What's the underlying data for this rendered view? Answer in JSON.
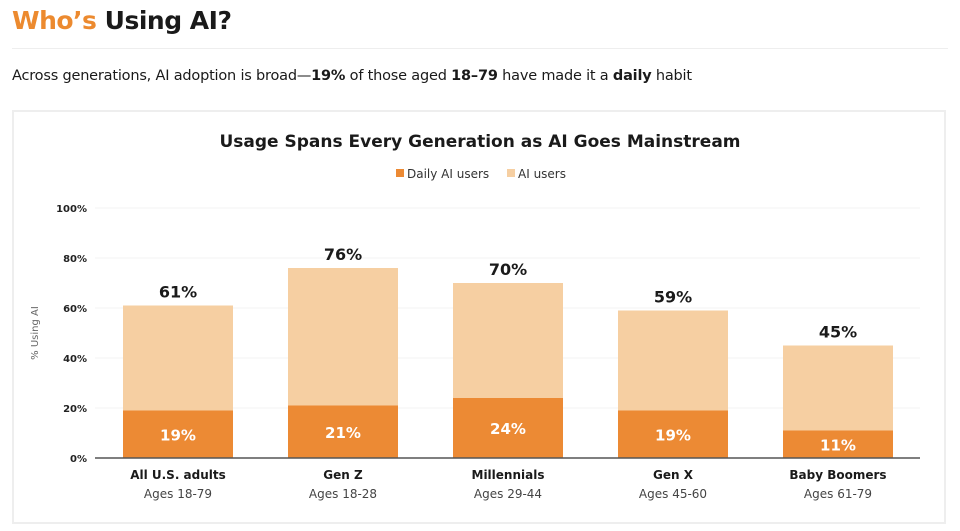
{
  "header": {
    "title_accent": "Who’s",
    "title_rest": " Using AI?"
  },
  "subtitle": {
    "pre": "Across generations, AI adoption is broad—",
    "b1": "19%",
    "mid": " of those aged ",
    "b2": "18–79",
    "mid2": " have made it a ",
    "b3": "daily",
    "post": " habit"
  },
  "chart_data": {
    "type": "bar",
    "stacked": "overlay",
    "title": "Usage Spans Every Generation as AI Goes Mainstream",
    "ylabel": "% Using AI",
    "ylim": [
      0,
      100
    ],
    "yticks": [
      "0%",
      "20%",
      "40%",
      "60%",
      "80%",
      "100%"
    ],
    "ytick_values": [
      0,
      20,
      40,
      60,
      80,
      100
    ],
    "grid": true,
    "legend_position": "top",
    "categories": [
      "All U.S. adults",
      "Gen Z",
      "Millennials",
      "Gen X",
      "Baby Boomers"
    ],
    "sublabels": [
      "Ages 18-79",
      "Ages 18-28",
      "Ages 29-44",
      "Ages 45-60",
      "Ages 61-79"
    ],
    "series": [
      {
        "name": "Daily AI users",
        "color": "#ec8a34",
        "values": [
          19,
          21,
          24,
          19,
          11
        ],
        "labels": [
          "19%",
          "21%",
          "24%",
          "19%",
          "11%"
        ]
      },
      {
        "name": "AI users",
        "color": "#f6cfa2",
        "values": [
          61,
          76,
          70,
          59,
          45
        ],
        "labels": [
          "61%",
          "76%",
          "70%",
          "59%",
          "45%"
        ]
      }
    ]
  }
}
